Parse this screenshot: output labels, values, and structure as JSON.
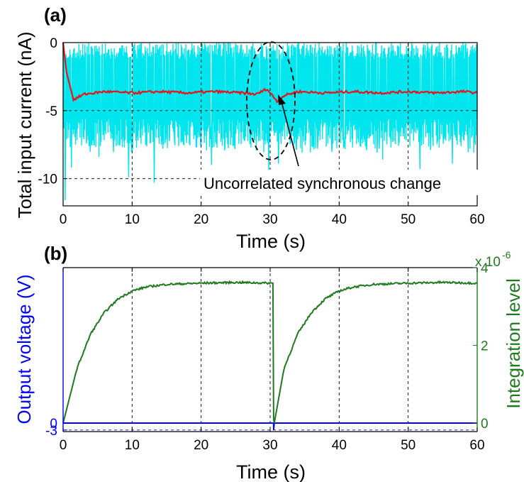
{
  "colors": {
    "noise": "#00e5ee",
    "mean": "#e8141a",
    "output": "#0000ff",
    "integration": "#1f7a1f",
    "axis": "#000000",
    "grid": "#000000"
  },
  "chart_data": [
    {
      "type": "line",
      "panel_label": "(a)",
      "xlabel": "Time (s)",
      "ylabel": "Total input current (nA)",
      "xlim": [
        0,
        60
      ],
      "ylim": [
        -12,
        0
      ],
      "xticks": [
        0,
        10,
        20,
        30,
        40,
        50,
        60
      ],
      "yticks": [
        0,
        -5,
        -10
      ],
      "grid": "dashed",
      "series": [
        {
          "role": "input current",
          "color": "#00e5ee",
          "band_upper": 0,
          "band_lower_typical": -7.5,
          "min_spikes": [
            {
              "x": 0.3,
              "y": -11.6
            },
            {
              "x": 1.2,
              "y": -9.2
            },
            {
              "x": 5.2,
              "y": -8.4
            },
            {
              "x": 9.5,
              "y": -9.9
            },
            {
              "x": 13.2,
              "y": -10.3
            },
            {
              "x": 21.5,
              "y": -9.0
            },
            {
              "x": 29.8,
              "y": -9.6
            },
            {
              "x": 31.2,
              "y": -8.9
            },
            {
              "x": 46.3,
              "y": -8.6
            },
            {
              "x": 51.7,
              "y": -9.3
            },
            {
              "x": 56.4,
              "y": -8.9
            },
            {
              "x": 59.5,
              "y": -8.1
            }
          ]
        },
        {
          "role": "mean current",
          "color": "#e8141a",
          "x": [
            0,
            0.5,
            1.5,
            3,
            6,
            10,
            14,
            18,
            22,
            26,
            28,
            29.5,
            31,
            32,
            34,
            38,
            42,
            46,
            50,
            54,
            58,
            60
          ],
          "values": [
            0,
            -2.2,
            -4.2,
            -3.8,
            -3.6,
            -3.7,
            -3.6,
            -3.7,
            -3.6,
            -3.7,
            -3.8,
            -3.4,
            -4.3,
            -3.9,
            -3.6,
            -3.7,
            -3.6,
            -3.7,
            -3.6,
            -3.7,
            -3.6,
            -3.7
          ]
        }
      ],
      "annotations": [
        {
          "text": "Uncorrelated synchronous change",
          "arrow_to": {
            "x": 31.2,
            "y": -4.3
          }
        }
      ]
    },
    {
      "type": "line",
      "panel_label": "(b)",
      "xlabel": "Time (s)",
      "ylabel_left": "Output voltage (V)",
      "ylabel_right": "Integration level",
      "right_exponent": "x 10",
      "right_exponent_power": "-6",
      "xlim": [
        0,
        60
      ],
      "ylim_right": [
        -0.22,
        4
      ],
      "xticks": [
        0,
        10,
        20,
        30,
        40,
        50,
        60
      ],
      "yticks_left": [
        "0",
        "-3"
      ],
      "yticks_right": [
        0,
        2,
        4
      ],
      "grid": "dashed",
      "series": [
        {
          "role": "integration level",
          "color": "#1f7a1f",
          "x": [
            0,
            2,
            4,
            6,
            8,
            10,
            12,
            15,
            20,
            25,
            30.4,
            30.5,
            30.6,
            32,
            34,
            36,
            38,
            40,
            42,
            45,
            50,
            55,
            60
          ],
          "values": [
            0,
            1.4,
            2.3,
            2.85,
            3.2,
            3.4,
            3.5,
            3.57,
            3.6,
            3.62,
            3.6,
            0.1,
            0,
            1.4,
            2.3,
            2.85,
            3.2,
            3.4,
            3.5,
            3.57,
            3.6,
            3.62,
            3.6
          ]
        },
        {
          "role": "output voltage",
          "color": "#0000ff",
          "x": [
            0,
            30.5,
            30.5,
            30.6,
            60
          ],
          "values": [
            0,
            0,
            -3,
            0,
            0
          ]
        }
      ]
    }
  ]
}
